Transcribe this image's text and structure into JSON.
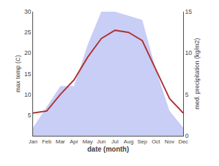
{
  "chart_data": {
    "type": "line",
    "categories": [
      "Jan",
      "Feb",
      "Mar",
      "Apr",
      "May",
      "Jun",
      "Jul",
      "Aug",
      "Sep",
      "Oct",
      "Nov",
      "Dec"
    ],
    "series": [
      {
        "type": "area",
        "axis": "y2",
        "color": "#c8cef5",
        "values": [
          1.0,
          3.5,
          6.0,
          6.0,
          11.0,
          15.0,
          15.0,
          14.5,
          14.0,
          8.0,
          3.0,
          1.0
        ]
      },
      {
        "type": "line",
        "color": "#b03030",
        "values": [
          5.5,
          6.0,
          10.0,
          13.5,
          19.0,
          23.5,
          25.5,
          25.0,
          23.0,
          16.0,
          9.0,
          5.5
        ]
      }
    ],
    "xlabel": "date (month)",
    "ylabel": "max temp (C)",
    "y2label": "med. precipitation (kg/m2)",
    "ylim": [
      0,
      30
    ],
    "yticks": [
      5,
      10,
      15,
      20,
      25,
      30
    ],
    "y2lim": [
      0,
      15
    ],
    "y2ticks": [
      0,
      5,
      10,
      15
    ],
    "grid": false
  }
}
